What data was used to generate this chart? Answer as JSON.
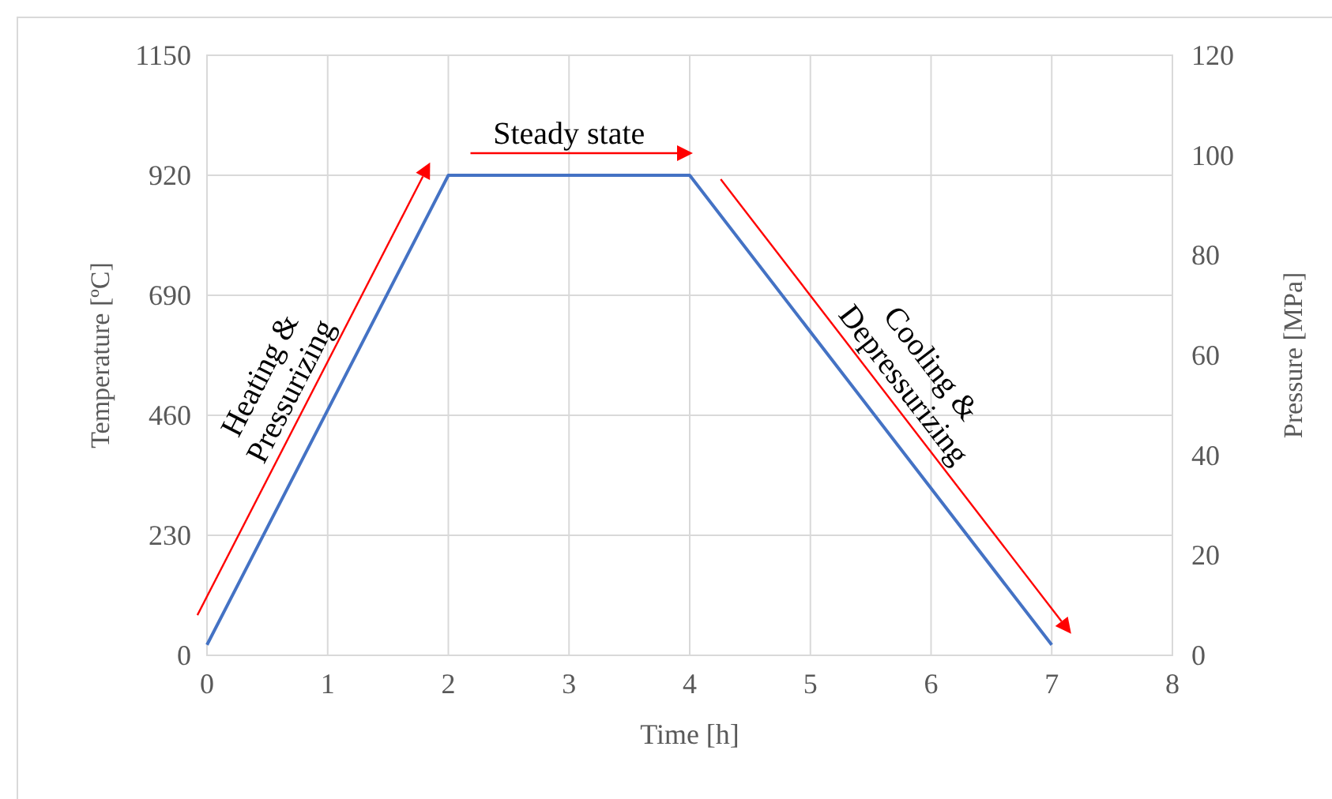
{
  "chart_data": {
    "type": "line",
    "xlabel": "Time [h]",
    "ylabel": "Temperature [ºC]",
    "y2label": "Pressure [MPa]",
    "x": [
      0,
      2,
      4,
      7
    ],
    "series": [
      {
        "color": "#4472c4",
        "values": [
          20,
          920,
          920,
          20
        ]
      }
    ],
    "xlim": [
      0,
      8
    ],
    "xticks": [
      0,
      1,
      2,
      3,
      4,
      5,
      6,
      7,
      8
    ],
    "ylim": [
      0,
      1150
    ],
    "yticks": [
      0,
      230,
      460,
      690,
      920,
      1150
    ],
    "y2lim": [
      0,
      120
    ],
    "y2ticks": [
      0,
      20,
      40,
      60,
      80,
      100,
      120
    ],
    "grid": true,
    "marker": "none",
    "line_style": "solid",
    "annotations": [
      "Heating &\nPressurizing",
      "Steady state",
      "Cooling &\nDepressurizing"
    ]
  }
}
